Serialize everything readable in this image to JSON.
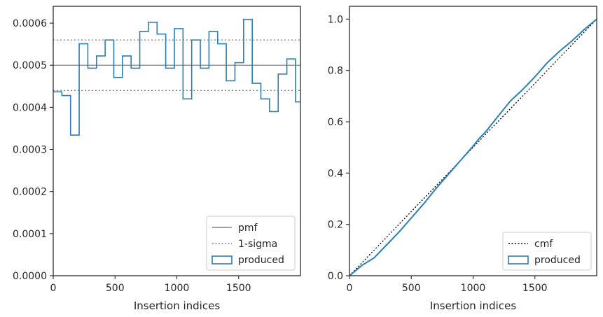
{
  "chart_data": [
    {
      "type": "step-histogram",
      "xlabel": "Insertion indices",
      "ylabel": "",
      "xlim": [
        0,
        2000
      ],
      "ylim": [
        0,
        0.00064
      ],
      "x_ticks": [
        0,
        500,
        1000,
        1500
      ],
      "x_tick_labels": [
        "0",
        "500",
        "1000",
        "1500"
      ],
      "y_ticks": [
        0,
        0.0001,
        0.0002,
        0.0003,
        0.0004,
        0.0005,
        0.0006
      ],
      "y_tick_labels": [
        "0.0000",
        "0.0001",
        "0.0002",
        "0.0003",
        "0.0004",
        "0.0005",
        "0.0006"
      ],
      "grid": false,
      "legend_position": "bottom-right",
      "reference_lines": [
        {
          "name": "pmf",
          "y": 0.0005,
          "style": "solid",
          "color": "#808080"
        },
        {
          "name": "1-sigma",
          "y": 0.00056,
          "style": "dotted",
          "color": "#808080"
        },
        {
          "name": "1-sigma",
          "y": 0.00044,
          "style": "dotted",
          "color": "#808080"
        }
      ],
      "series": [
        {
          "name": "produced",
          "color": "#2a7fb4",
          "bin_edges": [
            0,
            70,
            140,
            210,
            280,
            350,
            420,
            490,
            560,
            630,
            700,
            770,
            840,
            910,
            980,
            1050,
            1120,
            1190,
            1260,
            1330,
            1400,
            1470,
            1540,
            1610,
            1680,
            1750,
            1820,
            1890,
            1960,
            2000
          ],
          "values": [
            0.000437,
            0.000428,
            0.000334,
            0.000551,
            0.000493,
            0.000522,
            0.00056,
            0.000471,
            0.000522,
            0.000493,
            0.00058,
            0.000602,
            0.000574,
            0.000493,
            0.000587,
            0.00042,
            0.00056,
            0.000493,
            0.00058,
            0.000551,
            0.000463,
            0.000506,
            0.000609,
            0.000457,
            0.00042,
            0.00039,
            0.000479,
            0.000515,
            0.000413
          ]
        }
      ],
      "legend": [
        {
          "label": "pmf",
          "kind": "line-solid"
        },
        {
          "label": "1-sigma",
          "kind": "line-dotted"
        },
        {
          "label": "produced",
          "kind": "patch"
        }
      ]
    },
    {
      "type": "line",
      "xlabel": "Insertion indices",
      "ylabel": "",
      "xlim": [
        0,
        2000
      ],
      "ylim": [
        0,
        1.05
      ],
      "x_ticks": [
        0,
        500,
        1000,
        1500
      ],
      "x_tick_labels": [
        "0",
        "500",
        "1000",
        "1500"
      ],
      "y_ticks": [
        0,
        0.2,
        0.4,
        0.6,
        0.8,
        1.0
      ],
      "y_tick_labels": [
        "0.0",
        "0.2",
        "0.4",
        "0.6",
        "0.8",
        "1.0"
      ],
      "grid": false,
      "legend_position": "bottom-right",
      "series": [
        {
          "name": "cmf",
          "style": "dotted",
          "color": "#000000",
          "x": [
            0,
            2000
          ],
          "y": [
            0,
            1.0
          ]
        },
        {
          "name": "produced",
          "style": "solid",
          "color": "#2a7fb4",
          "x": [
            0,
            100,
            150,
            200,
            300,
            400,
            500,
            600,
            700,
            800,
            900,
            1000,
            1050,
            1100,
            1200,
            1300,
            1400,
            1500,
            1600,
            1700,
            1800,
            1900,
            2000
          ],
          "y": [
            0,
            0.04,
            0.055,
            0.07,
            0.12,
            0.17,
            0.225,
            0.28,
            0.34,
            0.395,
            0.45,
            0.505,
            0.535,
            0.56,
            0.62,
            0.68,
            0.725,
            0.775,
            0.83,
            0.875,
            0.915,
            0.96,
            1.0
          ]
        }
      ],
      "legend": [
        {
          "label": "cmf",
          "kind": "line-dotted"
        },
        {
          "label": "produced",
          "kind": "patch"
        }
      ]
    }
  ]
}
